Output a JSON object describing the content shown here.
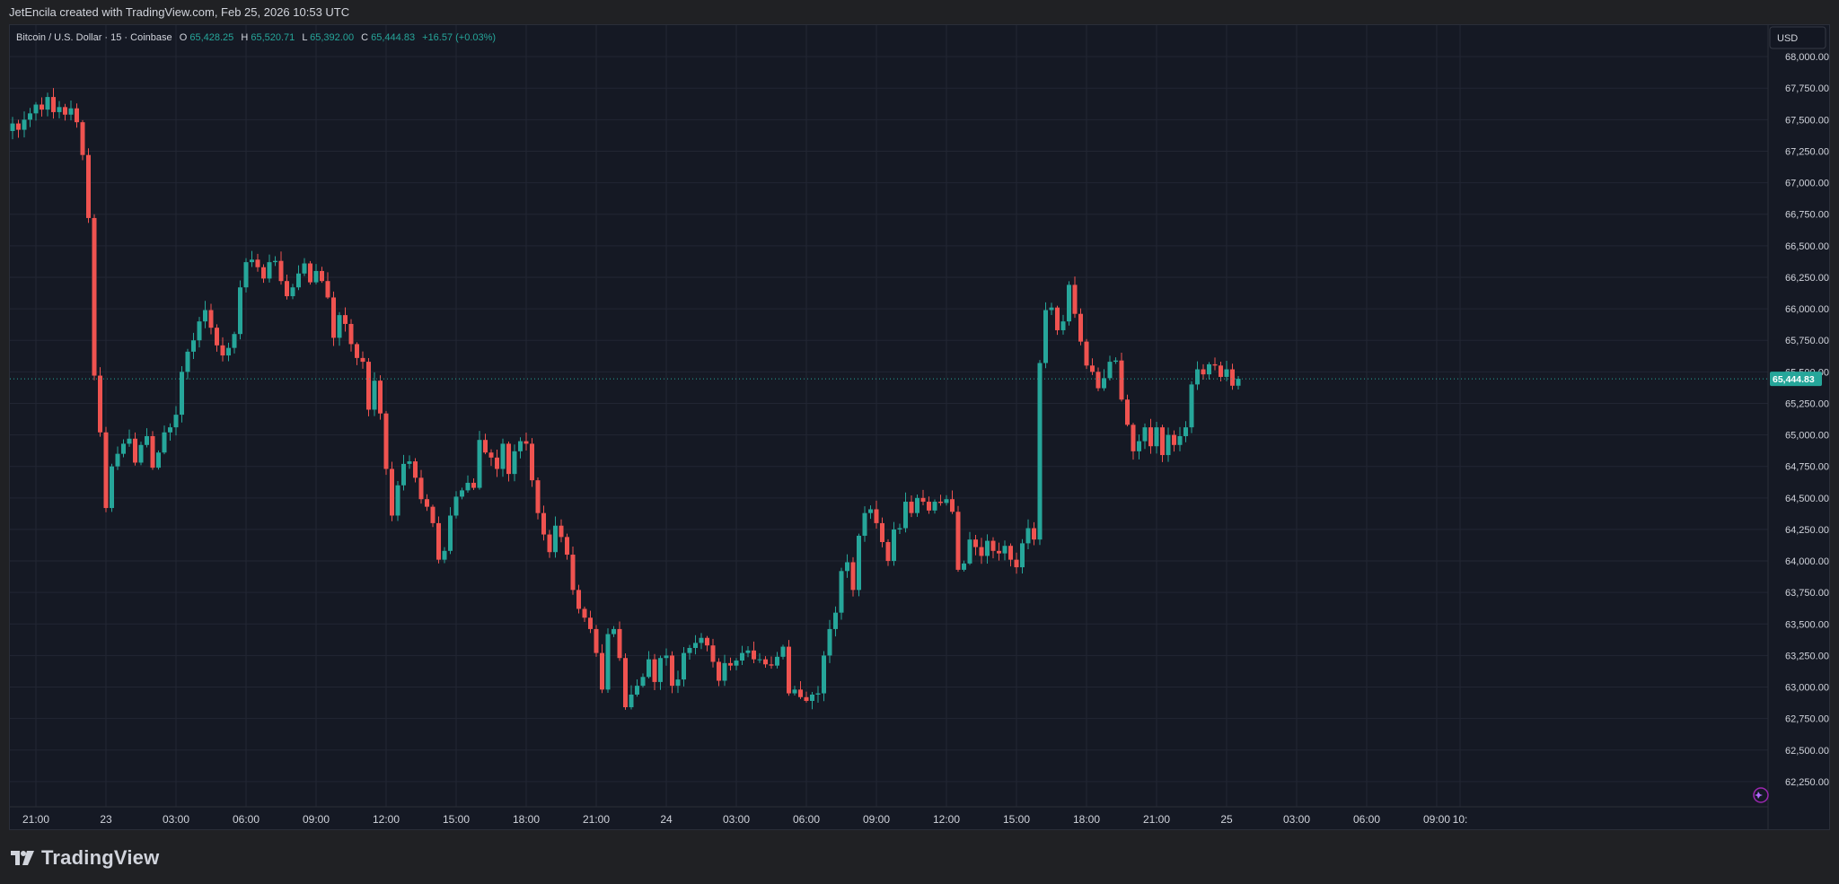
{
  "header": {
    "attribution": "JetEncila created with TradingView.com, Feb 25, 2026 10:53 UTC"
  },
  "legend": {
    "symbol": "Bitcoin / U.S. Dollar · 15 · Coinbase",
    "o_label": "O",
    "o_value": "65,428.25",
    "h_label": "H",
    "h_value": "65,520.71",
    "l_label": "L",
    "l_value": "65,392.00",
    "c_label": "C",
    "c_value": "65,444.83",
    "change": "+16.57 (+0.03%)"
  },
  "currency_button": "USD",
  "last_price_label": "65,444.83",
  "footer": {
    "brand": "TradingView"
  },
  "icons": {
    "logo": "tradingview-logo-icon",
    "corner": "sparkle-icon"
  },
  "colors": {
    "up": "#26a69a",
    "down": "#ef5350",
    "background": "#151924",
    "grid": "#222633",
    "text": "#d1d4dc",
    "legend_values": "#26a69a"
  },
  "chart_data": {
    "type": "candlestick",
    "title": "Bitcoin / U.S. Dollar · 15 · Coinbase",
    "ylim": [
      62050,
      68250
    ],
    "y_ticks": [
      62250,
      62500,
      62750,
      63000,
      63250,
      63500,
      63750,
      64000,
      64250,
      64500,
      64750,
      65000,
      65250,
      65500,
      65750,
      66000,
      66250,
      66500,
      66750,
      67000,
      67250,
      67500,
      67750,
      68000
    ],
    "y_tick_labels": [
      "62,250.00",
      "62,500.00",
      "62,750.00",
      "63,000.00",
      "63,250.00",
      "63,500.00",
      "63,750.00",
      "64,000.00",
      "64,250.00",
      "64,500.00",
      "64,750.00",
      "65,000.00",
      "65,250.00",
      "65,500.00",
      "65,750.00",
      "66,000.00",
      "66,250.00",
      "66,500.00",
      "66,750.00",
      "67,000.00",
      "67,250.00",
      "67,500.00",
      "67,750.00",
      "68,000.00"
    ],
    "x_ticks": [
      {
        "label": "21:00",
        "time": "Feb 22 21:00"
      },
      {
        "label": "23",
        "time": "Feb 23 00:00"
      },
      {
        "label": "03:00",
        "time": "Feb 23 03:00"
      },
      {
        "label": "06:00",
        "time": "Feb 23 06:00"
      },
      {
        "label": "09:00",
        "time": "Feb 23 09:00"
      },
      {
        "label": "12:00",
        "time": "Feb 23 12:00"
      },
      {
        "label": "15:00",
        "time": "Feb 23 15:00"
      },
      {
        "label": "18:00",
        "time": "Feb 23 18:00"
      },
      {
        "label": "21:00",
        "time": "Feb 23 21:00"
      },
      {
        "label": "24",
        "time": "Feb 24 00:00"
      },
      {
        "label": "03:00",
        "time": "Feb 24 03:00"
      },
      {
        "label": "06:00",
        "time": "Feb 24 06:00"
      },
      {
        "label": "09:00",
        "time": "Feb 24 09:00"
      },
      {
        "label": "12:00",
        "time": "Feb 24 12:00"
      },
      {
        "label": "15:00",
        "time": "Feb 24 15:00"
      },
      {
        "label": "18:00",
        "time": "Feb 24 18:00"
      },
      {
        "label": "21:00",
        "time": "Feb 24 21:00"
      },
      {
        "label": "25",
        "time": "Feb 25 00:00"
      },
      {
        "label": "03:00",
        "time": "Feb 25 03:00"
      },
      {
        "label": "06:00",
        "time": "Feb 25 06:00"
      },
      {
        "label": "09:00",
        "time": "Feb 25 09:00"
      },
      {
        "label": "10:",
        "time": "Feb 25 10:00"
      }
    ],
    "start_time": "Feb 22 20:00",
    "interval": "15 min",
    "last_price": 65444.83,
    "close_path": [
      67410,
      67470,
      67420,
      67500,
      67550,
      67620,
      67580,
      67680,
      67560,
      67600,
      67540,
      67590,
      67480,
      67220,
      66720,
      65470,
      65020,
      64420,
      64750,
      64850,
      64930,
      64970,
      64780,
      64920,
      64990,
      64740,
      64860,
      65020,
      65060,
      65160,
      65500,
      65660,
      65750,
      65900,
      65990,
      65850,
      65710,
      65630,
      65690,
      65800,
      66170,
      66370,
      66390,
      66330,
      66240,
      66370,
      66380,
      66220,
      66100,
      66170,
      66280,
      66360,
      66210,
      66300,
      66220,
      66090,
      65770,
      65950,
      65880,
      65720,
      65610,
      65580,
      65200,
      65430,
      65170,
      64730,
      64360,
      64600,
      64770,
      64790,
      64660,
      64490,
      64430,
      64300,
      64010,
      64080,
      64360,
      64510,
      64560,
      64620,
      64580,
      64960,
      64860,
      64820,
      64730,
      64930,
      64690,
      64870,
      64950,
      64930,
      64640,
      64380,
      64210,
      64070,
      64280,
      64190,
      64050,
      63770,
      63620,
      63550,
      63460,
      63270,
      62980,
      63420,
      63460,
      63230,
      62840,
      62940,
      63010,
      63080,
      63220,
      63040,
      63230,
      63250,
      63010,
      63060,
      63270,
      63310,
      63350,
      63390,
      63330,
      63200,
      63050,
      63190,
      63170,
      63210,
      63270,
      63290,
      63220,
      63220,
      63180,
      63170,
      63240,
      63320,
      62950,
      62980,
      62920,
      62890,
      62940,
      62950,
      63250,
      63460,
      63590,
      63920,
      63990,
      63770,
      64200,
      64380,
      64410,
      64300,
      64150,
      64000,
      64250,
      64260,
      64470,
      64380,
      64500,
      64470,
      64400,
      64470,
      64460,
      64490,
      64390,
      63930,
      63980,
      64170,
      64110,
      64040,
      64160,
      64080,
      64060,
      64120,
      64010,
      63950,
      64140,
      64260,
      64170,
      65570,
      65990,
      66010,
      65830,
      65900,
      66190,
      65960,
      65740,
      65550,
      65500,
      65370,
      65450,
      65580,
      65590,
      65280,
      65080,
      64870,
      64950,
      65060,
      64910,
      65060,
      64840,
      65000,
      64920,
      64990,
      65060,
      65400,
      65520,
      65480,
      65560,
      65550,
      65460,
      65520,
      65390,
      65444.83
    ]
  }
}
